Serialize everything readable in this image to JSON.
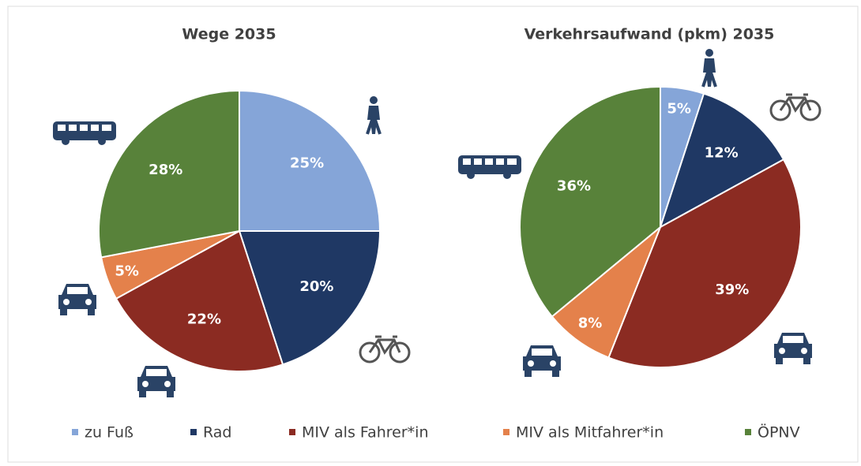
{
  "chart_data": [
    {
      "type": "pie",
      "title": "Wege 2035",
      "categories": [
        "zu Fuß",
        "Rad",
        "MIV als Fahrer*in",
        "MIV als Mitfahrer*in",
        "ÖPNV"
      ],
      "values": [
        25,
        20,
        22,
        5,
        28
      ],
      "colors": [
        "#85a5d8",
        "#1f3864",
        "#8b2b22",
        "#e4814b",
        "#58823a"
      ]
    },
    {
      "type": "pie",
      "title": "Verkehrsaufwand (pkm) 2035",
      "categories": [
        "zu Fuß",
        "Rad",
        "MIV als Fahrer*in",
        "MIV als Mitfahrer*in",
        "ÖPNV"
      ],
      "values": [
        5,
        12,
        39,
        8,
        36
      ],
      "colors": [
        "#85a5d8",
        "#1f3864",
        "#8b2b22",
        "#e4814b",
        "#58823a"
      ]
    }
  ]
}
